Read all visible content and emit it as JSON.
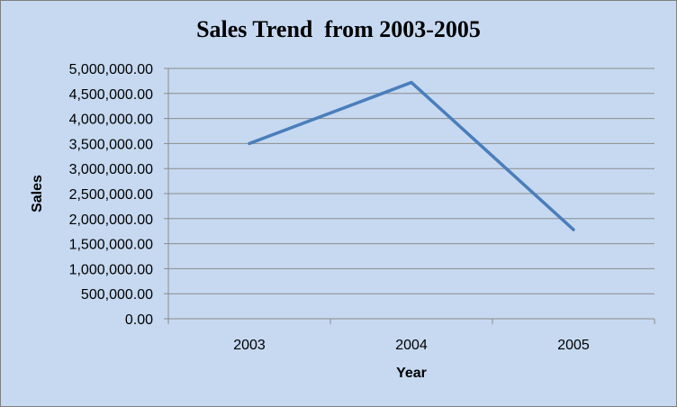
{
  "chart_data": {
    "type": "line",
    "title": "Sales Trend  from 2003-2005",
    "xlabel": "Year",
    "ylabel": "Sales",
    "categories": [
      "2003",
      "2004",
      "2005"
    ],
    "series": [
      {
        "values": [
          3500000,
          4720000,
          1780000
        ],
        "color": "#4a7ebb"
      }
    ],
    "ylim": [
      0,
      5000000
    ],
    "ytick_labels": [
      "0.00",
      "500,000.00",
      "1,000,000.00",
      "1,500,000.00",
      "2,000,000.00",
      "2,500,000.00",
      "3,000,000.00",
      "3,500,000.00",
      "4,000,000.00",
      "4,500,000.00",
      "5,000,000.00"
    ],
    "grid": true,
    "legend": "none"
  }
}
